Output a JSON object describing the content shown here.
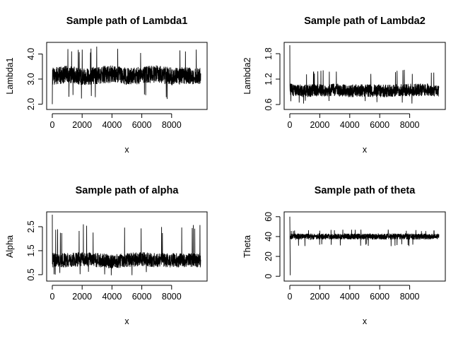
{
  "chart_data": [
    {
      "type": "line",
      "title": "Sample path of Lambda1",
      "xlabel": "x",
      "ylabel": "Lambda1",
      "xlim": [
        0,
        10000
      ],
      "ylim": [
        1.9,
        4.35
      ],
      "xticks": [
        0,
        2000,
        4000,
        6000,
        8000
      ],
      "xtick_labels": [
        "0",
        "2000",
        "4000",
        "6000",
        "8000"
      ],
      "yticks": [
        2.0,
        3.0,
        4.0
      ],
      "ytick_labels": [
        "2.0",
        "3.0",
        "4.0"
      ],
      "series": [
        {
          "start": 2.0,
          "center": 3.15,
          "noise": 0.35,
          "spike_up": 4.3,
          "spike_down": 2.15,
          "n": 10000,
          "x": [
            0,
            1000,
            2000,
            3000,
            4000,
            5000,
            6000,
            7000,
            8000,
            9000,
            10000
          ],
          "y": [
            3.1,
            3.2,
            3.1,
            3.15,
            3.2,
            3.1,
            3.15,
            3.2,
            3.1,
            3.15,
            3.1
          ]
        }
      ],
      "grid": false
    },
    {
      "type": "line",
      "title": "Sample path of Lambda2",
      "xlabel": "x",
      "ylabel": "Lambda2",
      "xlim": [
        0,
        10000
      ],
      "ylim": [
        0.55,
        2.0
      ],
      "xticks": [
        0,
        2000,
        4000,
        6000,
        8000
      ],
      "xtick_labels": [
        "0",
        "2000",
        "4000",
        "6000",
        "8000"
      ],
      "yticks": [
        0.6,
        1.2,
        1.8
      ],
      "ytick_labels": [
        "0.6",
        "1.2",
        "1.8"
      ],
      "series": [
        {
          "start": 2.0,
          "center": 0.92,
          "noise": 0.15,
          "spike_up": 1.42,
          "spike_down": 0.62,
          "n": 10000,
          "x": [
            0,
            1000,
            2000,
            3000,
            4000,
            5000,
            6000,
            7000,
            8000,
            9000,
            10000
          ],
          "y": [
            0.95,
            0.92,
            0.93,
            0.95,
            0.92,
            0.93,
            0.92,
            0.93,
            0.94,
            0.95,
            0.93
          ]
        }
      ],
      "grid": false
    },
    {
      "type": "line",
      "title": "Sample path of alpha",
      "xlabel": "x",
      "ylabel": "Alpha",
      "xlim": [
        0,
        10000
      ],
      "ylim": [
        0.35,
        3.0
      ],
      "xticks": [
        0,
        2000,
        4000,
        6000,
        8000
      ],
      "xtick_labels": [
        "0",
        "2000",
        "4000",
        "6000",
        "8000"
      ],
      "yticks": [
        0.5,
        1.5,
        2.5
      ],
      "ytick_labels": [
        "0.5",
        "1.5",
        "2.5"
      ],
      "series": [
        {
          "start": 3.0,
          "center": 1.1,
          "noise": 0.3,
          "spike_up": 2.6,
          "spike_down": 0.45,
          "n": 10000,
          "x": [
            0,
            1000,
            2000,
            3000,
            4000,
            5000,
            6000,
            7000,
            8000,
            9000,
            10000
          ],
          "y": [
            1.1,
            1.1,
            1.15,
            1.1,
            1.05,
            1.1,
            1.15,
            1.1,
            1.1,
            1.1,
            1.1
          ]
        }
      ],
      "grid": false
    },
    {
      "type": "line",
      "title": "Sample path of theta",
      "xlabel": "x",
      "ylabel": "Theta",
      "xlim": [
        0,
        10000
      ],
      "ylim": [
        -2,
        62
      ],
      "xticks": [
        0,
        2000,
        4000,
        6000,
        8000
      ],
      "xtick_labels": [
        "0",
        "2000",
        "4000",
        "6000",
        "8000"
      ],
      "yticks": [
        0,
        20,
        40,
        60
      ],
      "ytick_labels": [
        "0",
        "20",
        "40",
        "60"
      ],
      "series": [
        {
          "start": 60.0,
          "start2": 1.0,
          "center": 40,
          "noise": 3.0,
          "spike_up": 47,
          "spike_down": 30,
          "n": 10000,
          "x": [
            0,
            1000,
            2000,
            3000,
            4000,
            5000,
            6000,
            7000,
            8000,
            9000,
            10000
          ],
          "y": [
            40,
            40,
            40,
            40,
            40,
            40,
            40,
            40,
            40,
            40,
            40
          ]
        }
      ],
      "grid": false
    }
  ]
}
